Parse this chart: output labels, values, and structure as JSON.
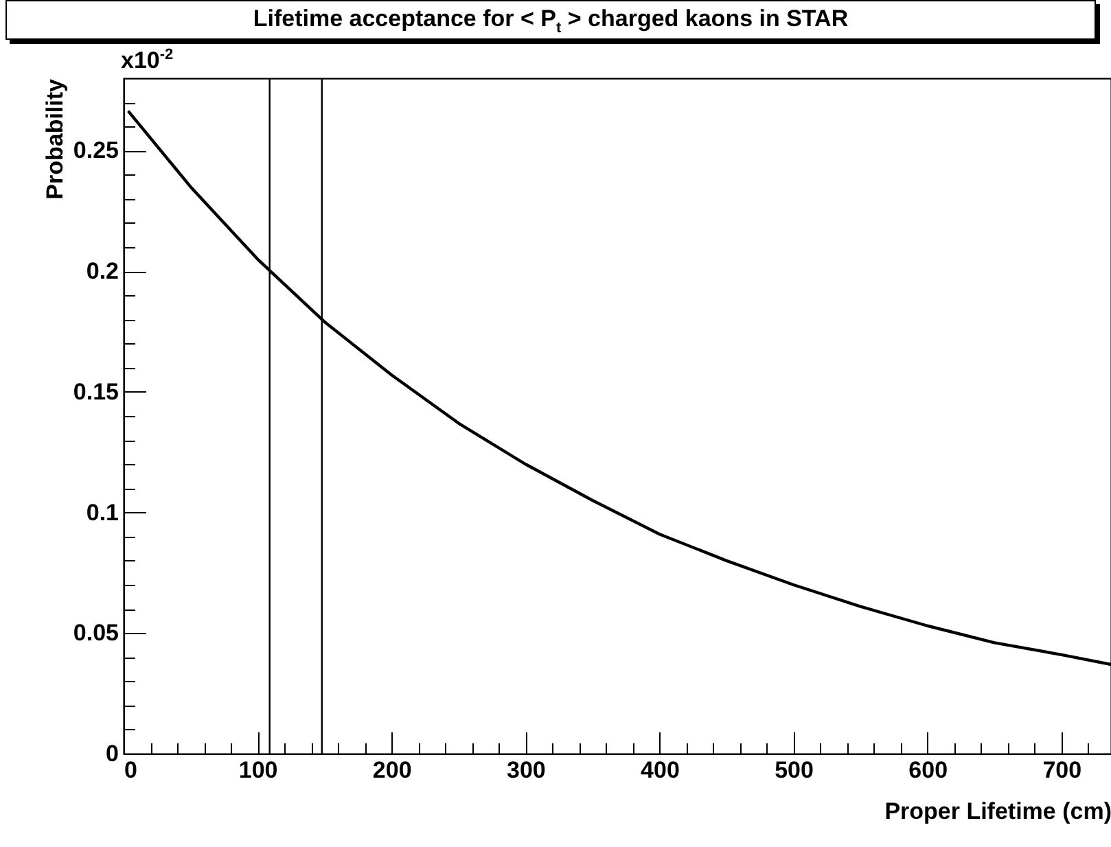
{
  "chart_data": {
    "type": "line",
    "title": "Lifetime acceptance for < P$_{t}$ > charged kaons in STAR",
    "xlabel": "Proper Lifetime (cm)",
    "ylabel": "Probability",
    "annotations": [
      "x10$^{-2}$"
    ],
    "x": [
      4,
      50,
      100,
      150,
      200,
      250,
      300,
      350,
      400,
      450,
      500,
      550,
      600,
      650,
      700,
      737
    ],
    "series": [
      {
        "color": "#000000",
        "values": [
          0.266,
          0.235,
          0.205,
          0.179,
          0.157,
          0.137,
          0.12,
          0.105,
          0.091,
          0.08,
          0.07,
          0.061,
          0.053,
          0.046,
          0.041,
          0.037
        ]
      }
    ],
    "xlim": [
      0,
      737
    ],
    "ylim": [
      0,
      0.28
    ],
    "xticks": [
      0,
      {
        "value": 20,
        "label": null
      },
      {
        "value": 40,
        "label": null
      },
      {
        "value": 60,
        "label": null
      },
      {
        "value": 80,
        "label": null
      },
      100,
      {
        "value": 120,
        "label": null
      },
      {
        "value": 140,
        "label": null
      },
      {
        "value": 160,
        "label": null
      },
      {
        "value": 180,
        "label": null
      },
      200,
      {
        "value": 220,
        "label": null
      },
      {
        "value": 240,
        "label": null
      },
      {
        "value": 260,
        "label": null
      },
      {
        "value": 280,
        "label": null
      },
      300,
      {
        "value": 320,
        "label": null
      },
      {
        "value": 340,
        "label": null
      },
      {
        "value": 360,
        "label": null
      },
      {
        "value": 380,
        "label": null
      },
      400,
      {
        "value": 420,
        "label": null
      },
      {
        "value": 440,
        "label": null
      },
      {
        "value": 460,
        "label": null
      },
      {
        "value": 480,
        "label": null
      },
      500,
      {
        "value": 520,
        "label": null
      },
      {
        "value": 540,
        "label": null
      },
      {
        "value": 560,
        "label": null
      },
      {
        "value": 580,
        "label": null
      },
      600,
      {
        "value": 620,
        "label": null
      },
      {
        "value": 640,
        "label": null
      },
      {
        "value": 660,
        "label": null
      },
      {
        "value": 680,
        "label": null
      },
      700,
      {
        "value": 720,
        "label": null
      }
    ],
    "yticks": [
      0,
      {
        "value": 0.01,
        "label": null
      },
      {
        "value": 0.02,
        "label": null
      },
      {
        "value": 0.03,
        "label": null
      },
      {
        "value": 0.04,
        "label": null
      },
      0.05,
      {
        "value": 0.06,
        "label": null
      },
      {
        "value": 0.07,
        "label": null
      },
      {
        "value": 0.08,
        "label": null
      },
      {
        "value": 0.09,
        "label": null
      },
      0.1,
      {
        "value": 0.11,
        "label": null
      },
      {
        "value": 0.12,
        "label": null
      },
      {
        "value": 0.13,
        "label": null
      },
      {
        "value": 0.14,
        "label": null
      },
      0.15,
      {
        "value": 0.16,
        "label": null
      },
      {
        "value": 0.17,
        "label": null
      },
      {
        "value": 0.18,
        "label": null
      },
      {
        "value": 0.19,
        "label": null
      },
      0.2,
      {
        "value": 0.21,
        "label": null
      },
      {
        "value": 0.22,
        "label": null
      },
      {
        "value": 0.23,
        "label": null
      },
      {
        "value": 0.24,
        "label": null
      },
      0.25,
      {
        "value": 0.26,
        "label": null
      },
      {
        "value": 0.27,
        "label": null
      }
    ],
    "ref_lines": [
      {
        "axis": "x",
        "value": 109,
        "color": "#000000"
      },
      {
        "axis": "x",
        "value": 148,
        "color": "#000000"
      }
    ],
    "grid": false,
    "marker": "none",
    "line_style": "solid"
  }
}
